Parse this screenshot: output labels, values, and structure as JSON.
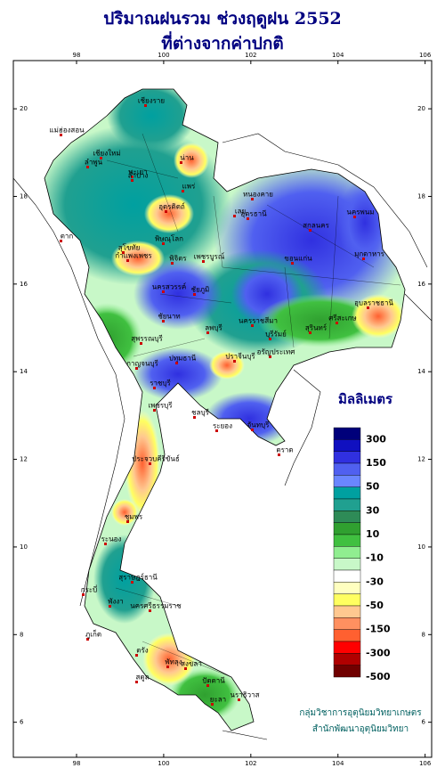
{
  "chart_data": {
    "type": "map",
    "title": [
      "ปริมาณฝนรวม ช่วงฤดูฝน 2552",
      "ที่ต่างจากค่าปกติ"
    ],
    "xlim": [
      96.55,
      106.15
    ],
    "ylim": [
      5.2,
      21.1
    ],
    "xticks": [
      98,
      100,
      102,
      104,
      106
    ],
    "yticks": [
      6,
      8,
      10,
      12,
      14,
      16,
      18,
      20
    ],
    "legend": {
      "title": "มิลลิเมตร",
      "colors": [
        "#00007a",
        "#1010c0",
        "#3030e0",
        "#5060f0",
        "#6a86ff",
        "#00a0a0",
        "#20a090",
        "#2e8b57",
        "#30a030",
        "#40c040",
        "#90ee90",
        "#c8f8c8",
        "#ffffff",
        "#ffffc0",
        "#ffff60",
        "#ffc890",
        "#ff9060",
        "#ff6030",
        "#ff0000",
        "#b00000",
        "#700000"
      ],
      "labels": [
        300,
        150,
        50,
        30,
        10,
        -10,
        -30,
        -50,
        -150,
        -300,
        -500
      ]
    },
    "credits": [
      "กลุ่มวิชาการอุตุนิยมวิทยาเกษตร",
      "สำนักพัฒนาอุตุนิยมวิทยา"
    ],
    "places": [
      "เชียงราย",
      "แม่ฮ่องสอน",
      "เชียงใหม่",
      "ลำพูน",
      "พะเยา",
      "น่าน",
      "ลำปาง",
      "แพร่",
      "อุตรดิตถ์",
      "ตาก",
      "สุโขทัย",
      "พิษณุโลก",
      "กำแพงเพชร",
      "พิจิตร",
      "เพชรบูรณ์",
      "นครสวรรค์",
      "ชัยนาท",
      "ลพบุรี",
      "สุพรรณบุรี",
      "กาญจนบุรี",
      "ปทุมธานี",
      "ราชบุรี",
      "ปราจีนบุรี",
      "ชลบุรี",
      "ระยอง",
      "จันทบุรี",
      "ตราด",
      "เพชรบุรี",
      "ประจวบคีรีขันธ์",
      "ชุมพร",
      "ระนอง",
      "สุราษฎร์ธานี",
      "กระบี่",
      "พังงา",
      "ภูเก็ต",
      "นครศรีธรรมราช",
      "ตรัง",
      "พัทลุง",
      "สงขลา",
      "สตูล",
      "ปัตตานี",
      "นราธิวาส",
      "หนองคาย",
      "อุดรธานี",
      "สกลนคร",
      "นครพนม",
      "มุกดาหาร",
      "เลย",
      "ขอนแก่น",
      "ชัยภูมิ",
      "นครราชสีมา",
      "บุรีรัมย์",
      "สุรินทร์",
      "อุบลราชธานี",
      "ศรีสะเกษ",
      "อรัญประเทศ",
      "ยะลา"
    ]
  }
}
